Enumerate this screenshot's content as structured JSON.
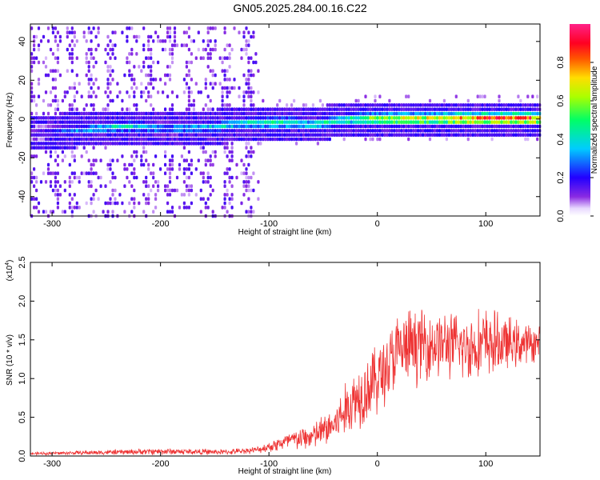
{
  "title": "GN05.2025.284.00.16.C22",
  "chart_data": [
    {
      "type": "heatmap",
      "name": "spectrogram",
      "xlabel": "Height of straight line (km)",
      "ylabel": "Frequency (Hz)",
      "xlim": [
        -320,
        150
      ],
      "ylim": [
        -50,
        49
      ],
      "xticks": [
        -300,
        -200,
        -100,
        0,
        100
      ],
      "yticks": [
        -40,
        -20,
        0,
        20,
        40
      ],
      "colorbar": {
        "label": "Normalized spectral amplitude",
        "range": [
          0,
          1
        ],
        "ticks": [
          0.0,
          0.2,
          0.4,
          0.6,
          0.8
        ]
      },
      "ridge": [
        {
          "x": -285,
          "y": -6,
          "amp": 0.3
        },
        {
          "x": -260,
          "y": -5,
          "amp": 0.4
        },
        {
          "x": -240,
          "y": -4,
          "amp": 0.45
        },
        {
          "x": -220,
          "y": -4,
          "amp": 0.4
        },
        {
          "x": -200,
          "y": -5,
          "amp": 0.35
        },
        {
          "x": -150,
          "y": -4,
          "amp": 0.4
        },
        {
          "x": -120,
          "y": -2,
          "amp": 0.45
        },
        {
          "x": -100,
          "y": -2,
          "amp": 0.5
        },
        {
          "x": -80,
          "y": -2,
          "amp": 0.5
        },
        {
          "x": -60,
          "y": -3,
          "amp": 0.45
        },
        {
          "x": -40,
          "y": -1,
          "amp": 0.5
        },
        {
          "x": -20,
          "y": 0,
          "amp": 0.55
        },
        {
          "x": 0,
          "y": 0,
          "amp": 0.7
        },
        {
          "x": 20,
          "y": 0,
          "amp": 0.75
        },
        {
          "x": 40,
          "y": 0,
          "amp": 0.75
        },
        {
          "x": 60,
          "y": 0,
          "amp": 0.8
        },
        {
          "x": 80,
          "y": 0,
          "amp": 0.9
        },
        {
          "x": 100,
          "y": 0,
          "amp": 0.95
        },
        {
          "x": 120,
          "y": 0,
          "amp": 0.95
        },
        {
          "x": 150,
          "y": 0,
          "amp": 0.95
        }
      ]
    },
    {
      "type": "line",
      "name": "snr",
      "xlabel": "Height of straight line (km)",
      "ylabel": "SNR (10 * v/v)",
      "yscale_label": "(x10",
      "yscale_exponent": "4",
      "xlim": [
        -320,
        150
      ],
      "ylim": [
        0,
        2.5
      ],
      "xticks": [
        -300,
        -200,
        -100,
        0,
        100
      ],
      "yticks": [
        0.0,
        0.5,
        1.0,
        1.5,
        2.0,
        2.5
      ],
      "color": "#ee3333",
      "envelope": {
        "x": [
          -320,
          -200,
          -140,
          -110,
          -100,
          -80,
          -60,
          -40,
          -20,
          0,
          20,
          40,
          60,
          80,
          100,
          120,
          150
        ],
        "mean": [
          0.03,
          0.06,
          0.05,
          0.08,
          0.12,
          0.2,
          0.25,
          0.4,
          0.75,
          1.0,
          1.35,
          1.45,
          1.45,
          1.4,
          1.45,
          1.45,
          1.45
        ],
        "spread": [
          0.02,
          0.05,
          0.04,
          0.05,
          0.08,
          0.15,
          0.2,
          0.3,
          0.5,
          0.55,
          0.6,
          0.55,
          0.5,
          0.5,
          0.55,
          0.4,
          0.25
        ]
      }
    }
  ]
}
